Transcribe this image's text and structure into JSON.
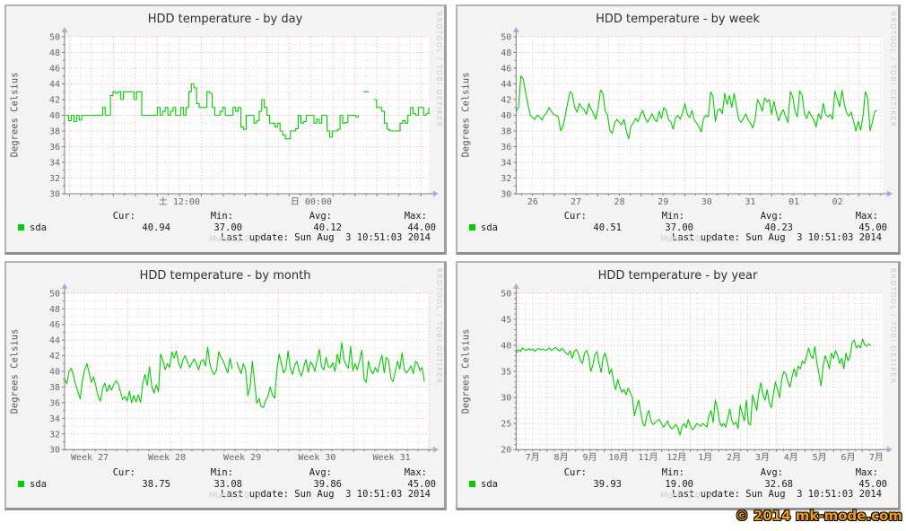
{
  "page": {
    "copyright": "© 2014 mk-mode.com"
  },
  "branding": {
    "rrdtool": "RRDTOOL / TOBI OETIKER",
    "munin_version": "Munin 2.0.12"
  },
  "colors": {
    "line": "#00cf00",
    "swatch": "#00cf00",
    "grid_major": "#f2a2a2",
    "grid_minor": "#d4d4d4",
    "axis": "#7f7f7f",
    "arrow": "#a7ace0",
    "plot_bg": "#ffffff",
    "panel_bg": "#f3f3f3",
    "title_text": "#2f2f2f",
    "tick_text": "#666666",
    "watermark": "#c9c9c9",
    "copyright": "#f2a000"
  },
  "chart_data": [
    {
      "type": "line",
      "step": true,
      "title": "HDD temperature - by day",
      "ylabel": "Degrees Celsius",
      "ylim": [
        30,
        50
      ],
      "y_major": 2,
      "y_minor": 1,
      "x_ticks": [
        {
          "p": 0.315,
          "label": "土 12:00"
        },
        {
          "p": 0.677,
          "label": "日 00:00"
        }
      ],
      "x_grid": {
        "anchor_p": 0.315,
        "major_step_p": 0.0603,
        "minor_div": 2
      },
      "legend": {
        "series": "sda",
        "cur_label": "Cur:",
        "min_label": "Min:",
        "avg_label": "Avg:",
        "max_label": "Max:",
        "cur": "40.94",
        "min": "37.00",
        "avg": "40.12",
        "max": "44.00",
        "last_update": "Last update: Sun Aug  3 10:51:03 2014"
      },
      "series": {
        "start_p": 0.004,
        "end_p": 1.0,
        "values": [
          40,
          39.3,
          40,
          39.2,
          40,
          39.4,
          40,
          40,
          40,
          40,
          40,
          40,
          40,
          40,
          41,
          40,
          40,
          42.5,
          43,
          42.8,
          43,
          42,
          43,
          43,
          43,
          43,
          42,
          43,
          43,
          40,
          40,
          40,
          40,
          40,
          40,
          41,
          40,
          40.5,
          41,
          40,
          40.5,
          41,
          40,
          40,
          41,
          40,
          41,
          43,
          44,
          43.5,
          41.5,
          41,
          41,
          41,
          43,
          42.8,
          41,
          40,
          40,
          40.5,
          41,
          40,
          40,
          40,
          41,
          40.5,
          41,
          38.5,
          38.2,
          40,
          40,
          40,
          39,
          39.3,
          40.5,
          42,
          41,
          40,
          39,
          39,
          38.5,
          39,
          38,
          37.5,
          37,
          37,
          38,
          38,
          38.3,
          40,
          39,
          39.2,
          40,
          40,
          40,
          39,
          39.5,
          39,
          40,
          40,
          38,
          37.2,
          38,
          38,
          38.2,
          40,
          39,
          39.1,
          40,
          40,
          40,
          39.8,
          40,
          null,
          43,
          43,
          43,
          null,
          42,
          41,
          41,
          40.5,
          39,
          38.2,
          38,
          38,
          38,
          38,
          39,
          39.3,
          39,
          40,
          41,
          40.2,
          40,
          41,
          41,
          40,
          40.2,
          41
        ]
      }
    },
    {
      "type": "line",
      "step": false,
      "title": "HDD temperature - by week",
      "ylabel": "Degrees Celsius",
      "ylim": [
        30,
        50
      ],
      "y_major": 2,
      "y_minor": 1,
      "x_ticks": [
        {
          "p": 0.045,
          "label": "26"
        },
        {
          "p": 0.163,
          "label": "27"
        },
        {
          "p": 0.282,
          "label": "28"
        },
        {
          "p": 0.401,
          "label": "29"
        },
        {
          "p": 0.52,
          "label": "30"
        },
        {
          "p": 0.639,
          "label": "31"
        },
        {
          "p": 0.758,
          "label": "01"
        },
        {
          "p": 0.877,
          "label": "02"
        }
      ],
      "x_grid": {
        "anchor_p": 0.1036,
        "major_step_p": 0.1188,
        "minor_div": 4
      },
      "legend": {
        "series": "sda",
        "cur_label": "Cur:",
        "min_label": "Min:",
        "avg_label": "Avg:",
        "max_label": "Max:",
        "cur": "40.51",
        "min": "37.00",
        "avg": "40.23",
        "max": "45.00",
        "last_update": "Last update: Sun Aug  3 10:51:03 2014"
      },
      "series": {
        "start_p": 0.0,
        "end_p": 0.985,
        "values": [
          40.5,
          41,
          45,
          44.6,
          43,
          41.4,
          40,
          39.7,
          39.5,
          40,
          39.8,
          39.4,
          40,
          40.3,
          41,
          40.5,
          40.1,
          40,
          39.8,
          38,
          38.6,
          40,
          41.6,
          43,
          42.7,
          41,
          40.4,
          41.5,
          41,
          40.7,
          40.1,
          41.5,
          40.8,
          40.2,
          39.5,
          41,
          43.2,
          42.8,
          40.5,
          40,
          38,
          37.7,
          39,
          39.5,
          39.1,
          38.8,
          39.5,
          38,
          37,
          38.6,
          39,
          39.6,
          39.2,
          40,
          40.6,
          39.7,
          39.1,
          39.6,
          40.2,
          39.5,
          39.2,
          40.5,
          39.6,
          41,
          40.6,
          39.4,
          39.2,
          38.2,
          39.7,
          40,
          39.5,
          40.3,
          41.5,
          40.1,
          39.7,
          40.6,
          39.4,
          39,
          38.5,
          37.9,
          39.6,
          40,
          39.8,
          43,
          42.4,
          39.2,
          40.6,
          40.8,
          40.2,
          42.8,
          41.4,
          42.5,
          41,
          42.8,
          41.1,
          39.5,
          39.1,
          39.6,
          40.2,
          39.4,
          39,
          38.4,
          39.6,
          42,
          41.4,
          40.5,
          42.2,
          41.7,
          42,
          40.1,
          41.8,
          40.4,
          39.3,
          40.2,
          40.7,
          39.8,
          39.1,
          43,
          42.4,
          40.5,
          39.8,
          43.1,
          42.6,
          40.2,
          39.6,
          40.5,
          39.9,
          39.4,
          38.5,
          40.2,
          39.5,
          41.5,
          40.1,
          39.8,
          40.1,
          39.5,
          43.1,
          42.1,
          41.1,
          43.2,
          41.4,
          40.3,
          39.9,
          40.4,
          39.2,
          38,
          39.2,
          38.1,
          39.9,
          43,
          42.2,
          38,
          39.1,
          40.5,
          40.6
        ]
      }
    },
    {
      "type": "line",
      "step": false,
      "title": "HDD temperature - by month",
      "ylabel": "Degrees Celsius",
      "ylim": [
        30,
        50
      ],
      "y_major": 2,
      "y_minor": 1,
      "x_ticks": [
        {
          "p": 0.069,
          "label": "Week 27"
        },
        {
          "p": 0.281,
          "label": "Week 28"
        },
        {
          "p": 0.488,
          "label": "Week 29"
        },
        {
          "p": 0.693,
          "label": "Week 30"
        },
        {
          "p": 0.898,
          "label": "Week 31"
        }
      ],
      "x_grid": {
        "anchor_p": 0.1725,
        "major_step_p": 0.207,
        "minor_div": 7
      },
      "legend": {
        "series": "sda",
        "cur_label": "Cur:",
        "min_label": "Min:",
        "avg_label": "Avg:",
        "max_label": "Max:",
        "cur": "38.75",
        "min": "33.08",
        "avg": "39.86",
        "max": "45.00",
        "last_update": "Last update: Sun Aug  3 10:51:03 2014"
      },
      "series": {
        "start_p": 0.0,
        "end_p": 0.988,
        "values": [
          39,
          38.4,
          40,
          40.4,
          39.4,
          38.2,
          37.4,
          36.5,
          38.8,
          40.2,
          41,
          39.8,
          38.6,
          39.3,
          38.1,
          36.8,
          36.2,
          37.8,
          38.5,
          37.4,
          38.3,
          37.6,
          38.3,
          38.8,
          38.4,
          37.4,
          36.4,
          36.8,
          36.2,
          37.5,
          36,
          36.9,
          36.1,
          37,
          36,
          38.5,
          39.6,
          38.2,
          40.6,
          38.1,
          37.2,
          38.3,
          37.4,
          42.2,
          41.4,
          40.2,
          41,
          40.5,
          42.5,
          41.7,
          42.6,
          41.1,
          40.4,
          41.5,
          42,
          41.2,
          40.5,
          41.1,
          41.6,
          41,
          40.2,
          41.3,
          41.5,
          40.7,
          43.1,
          41,
          40,
          39.6,
          40.2,
          42.5,
          41.8,
          41.3,
          40.5,
          39.8,
          41.7,
          40.3,
          null,
          41.2,
          40.4,
          39.7,
          41,
          40.2,
          36.9,
          38,
          41.3,
          38.6,
          35.9,
          36.5,
          35.5,
          35.4,
          36.3,
          36.8,
          38,
          37,
          36.6,
          40.2,
          42.2,
          41,
          39.8,
          40.3,
          42.6,
          40.4,
          39.6,
          40.8,
          41.3,
          40,
          39.4,
          40.6,
          41.5,
          39.9,
          41.2,
          40.8,
          40,
          41.5,
          42.8,
          40.6,
          40.2,
          41.8,
          40.6,
          40.5,
          41.1,
          40,
          42.2,
          41,
          43.7,
          41.5,
          40.8,
          40.4,
          43.2,
          40.1,
          41,
          40.2,
          41.4,
          42.7,
          39,
          38.6,
          41.3,
          40.1,
          39.7,
          40.5,
          39.9,
          41,
          42.1,
          39.8,
          41.8,
          41.4,
          39.1,
          38.7,
          40,
          41.3,
          40.3,
          42.4,
          40.2,
          39.8,
          40.2,
          40.7,
          39.7,
          41.3,
          41,
          40.1,
          40.5,
          38.7
        ]
      }
    },
    {
      "type": "line",
      "step": false,
      "title": "HDD temperature - by year",
      "ylabel": "Degrees Celsius",
      "ylim": [
        20,
        50
      ],
      "y_major": 5,
      "y_minor": 1,
      "x_ticks": [
        {
          "p": 0.045,
          "label": "7月"
        },
        {
          "p": 0.123,
          "label": "8月"
        },
        {
          "p": 0.201,
          "label": "9月"
        },
        {
          "p": 0.279,
          "label": "10月"
        },
        {
          "p": 0.36,
          "label": "11月"
        },
        {
          "p": 0.438,
          "label": "12月"
        },
        {
          "p": 0.516,
          "label": "1月"
        },
        {
          "p": 0.594,
          "label": "2月"
        },
        {
          "p": 0.672,
          "label": "3月"
        },
        {
          "p": 0.75,
          "label": "4月"
        },
        {
          "p": 0.828,
          "label": "5月"
        },
        {
          "p": 0.906,
          "label": "6月"
        },
        {
          "p": 0.983,
          "label": "7月"
        }
      ],
      "x_grid": {
        "anchor_p": 0.0842,
        "major_step_p": 0.0782,
        "minor_div": 4
      },
      "legend": {
        "series": "sda",
        "cur_label": "Cur:",
        "min_label": "Min:",
        "avg_label": "Avg:",
        "max_label": "Max:",
        "cur": "39.93",
        "min": "19.00",
        "avg": "32.68",
        "max": "45.00",
        "last_update": "Last update: Sun Aug  3 10:51:03 2014"
      },
      "series": {
        "start_p": 0.0,
        "end_p": 0.968,
        "values": [
          38.5,
          39.2,
          38.8,
          39.5,
          39.2,
          39,
          39.4,
          39.1,
          39.3,
          38.9,
          39.2,
          39.4,
          39.1,
          39.3,
          39,
          39.2,
          39.5,
          39,
          39.3,
          39.6,
          39.2,
          38.9,
          39.4,
          39,
          38.5,
          38.2,
          39,
          37.5,
          38.8,
          39.2,
          38.5,
          37.2,
          36.5,
          38.5,
          39,
          37.8,
          35,
          36.2,
          38.2,
          38.8,
          36.5,
          34.8,
          37.8,
          38.5,
          36.8,
          34.5,
          35.5,
          33,
          31.5,
          33.5,
          32,
          31,
          31.5,
          30.5,
          31.8,
          31,
          30,
          26.5,
          28,
          29.5,
          27.5,
          25,
          24.5,
          26.5,
          27.5,
          25.5,
          24.8,
          25.2,
          25.5,
          25.8,
          25,
          24.3,
          24.8,
          25.5,
          24.5,
          24,
          24.3,
          24.8,
          24.1,
          22.8,
          24.5,
          25,
          24.2,
          25.8,
          24.5,
          23.8,
          24.2,
          25,
          24.8,
          24.5,
          25,
          24.7,
          24.3,
          26.5,
          27.5,
          25.2,
          29.5,
          28,
          25.5,
          24.5,
          25,
          24.3,
          26,
          27.8,
          25.5,
          24.8,
          25.3,
          24,
          28.5,
          27,
          25.5,
          29.5,
          25,
          24.7,
          30.5,
          29,
          27.5,
          31,
          32.8,
          30.5,
          29.5,
          31.5,
          29,
          28,
          30.5,
          33,
          31.5,
          30,
          33.5,
          35,
          34.5,
          33,
          32,
          34,
          35.5,
          34,
          36,
          35.5,
          37,
          36.5,
          38,
          39.5,
          38,
          37.5,
          39.8,
          36.5,
          34.5,
          32.2,
          36,
          38,
          37,
          35.5,
          38.5,
          37.5,
          39,
          38,
          36.5,
          37.5,
          35.5,
          38.5,
          37,
          38,
          40.5,
          41,
          39.5,
          40,
          39.5,
          41.2,
          40.2,
          39.8,
          40.3,
          39.9
        ]
      }
    }
  ]
}
